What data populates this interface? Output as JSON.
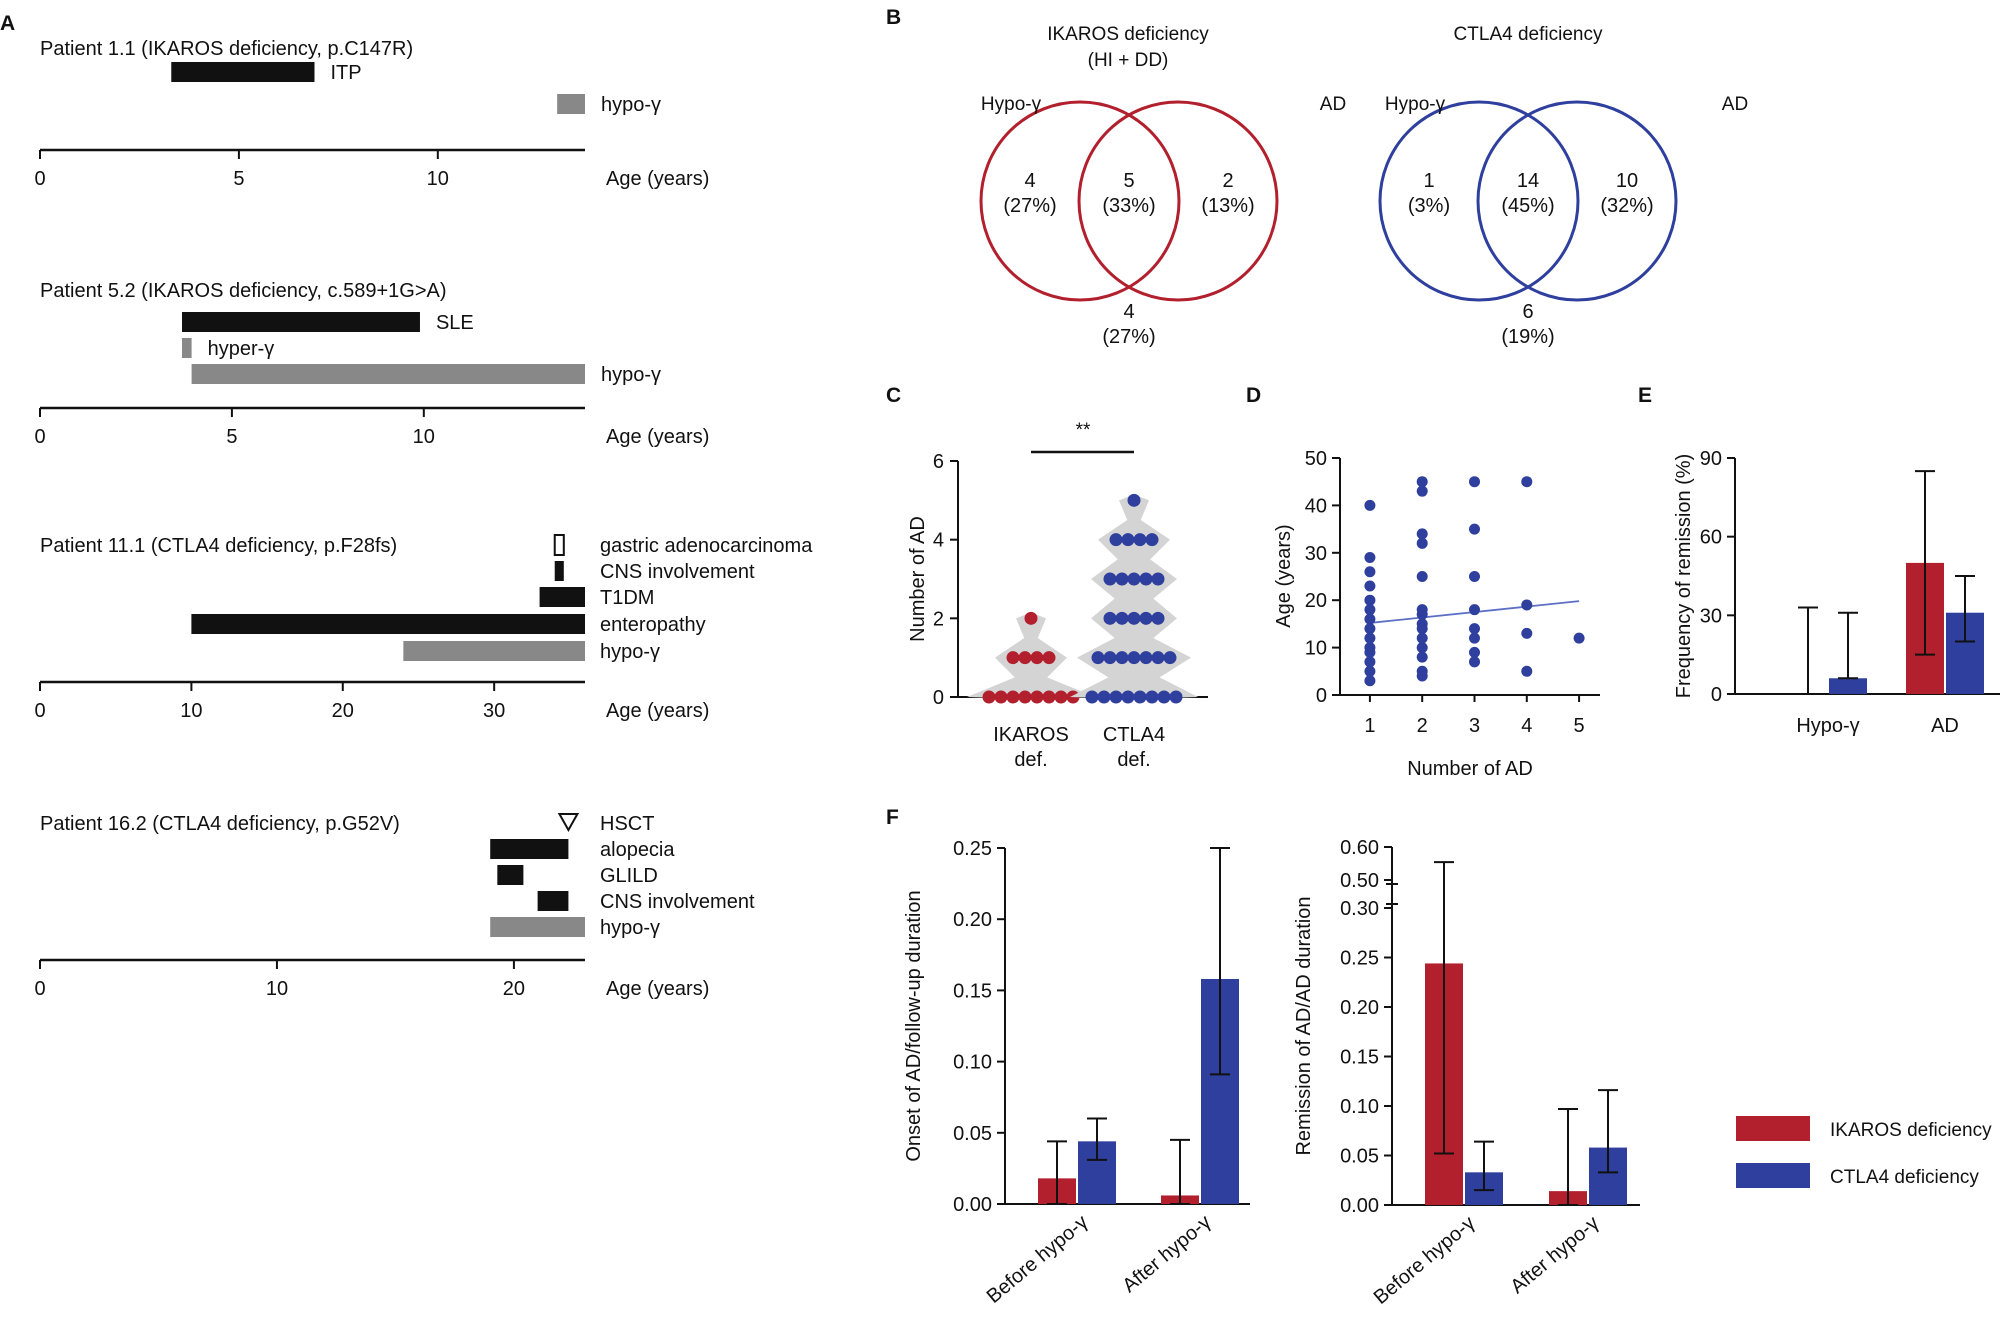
{
  "panel_labels": {
    "A": "A",
    "B": "B",
    "C": "C",
    "D": "D",
    "E": "E",
    "F": "F"
  },
  "colors": {
    "red": "#b21f2d",
    "blue": "#2e3f9e",
    "dark": "#111111",
    "gray": "#888888",
    "violin": "#d4d4d4"
  },
  "chart_data": [
    {
      "id": "A",
      "type": "timeline",
      "xlabel": "Age (years)",
      "patients": [
        {
          "title": "Patient 1.1 (IKAROS deficiency, p.C147R)",
          "xlim": [
            0,
            13.7
          ],
          "ticks": [
            0,
            5,
            10
          ],
          "bars": [
            {
              "label": "ITP",
              "start": 3.3,
              "end": 6.9,
              "kind": "black"
            },
            {
              "label": "hypo-γ",
              "start": 13.0,
              "end": 13.7,
              "kind": "gray"
            }
          ]
        },
        {
          "title": "Patient 5.2 (IKAROS deficiency, c.589+1G>A)",
          "xlim": [
            0,
            14.2
          ],
          "ticks": [
            0,
            5,
            10
          ],
          "bars": [
            {
              "label": "SLE",
              "start": 3.7,
              "end": 9.9,
              "kind": "black"
            },
            {
              "label": "hyper-γ",
              "start": 3.7,
              "end": 3.95,
              "kind": "gray"
            },
            {
              "label": "hypo-γ",
              "start": 3.95,
              "end": 14.2,
              "kind": "gray"
            }
          ]
        },
        {
          "title": "Patient 11.1 (CTLA4 deficiency, p.F28fs)",
          "xlim": [
            0,
            36
          ],
          "ticks": [
            0,
            10,
            20,
            30
          ],
          "bars": [
            {
              "label": "gastric adenocarcinoma",
              "start": 34.0,
              "end": 34.6,
              "kind": "open"
            },
            {
              "label": "CNS involvement",
              "start": 34.0,
              "end": 34.6,
              "kind": "black"
            },
            {
              "label": "T1DM",
              "start": 33.0,
              "end": 36.0,
              "kind": "black"
            },
            {
              "label": "enteropathy",
              "start": 10.0,
              "end": 36.0,
              "kind": "black"
            },
            {
              "label": "hypo-γ",
              "start": 24.0,
              "end": 36.0,
              "kind": "gray"
            }
          ]
        },
        {
          "title": "Patient 16.2 (CTLA4 deficiency, p.G52V)",
          "xlim": [
            0,
            23
          ],
          "ticks": [
            0,
            10,
            20
          ],
          "marker": {
            "label": "HSCT",
            "at": 22.3
          },
          "bars": [
            {
              "label": "alopecia",
              "start": 19.0,
              "end": 22.3,
              "kind": "black"
            },
            {
              "label": "GLILD",
              "start": 19.3,
              "end": 20.4,
              "kind": "black"
            },
            {
              "label": "CNS involvement",
              "start": 21.0,
              "end": 22.3,
              "kind": "black"
            },
            {
              "label": "hypo-γ",
              "start": 19.0,
              "end": 23.0,
              "kind": "gray"
            }
          ]
        }
      ]
    },
    {
      "id": "B",
      "type": "venn",
      "diagrams": [
        {
          "title": "IKAROS deficiency",
          "subtitle": "(HI + DD)",
          "color": "red",
          "left_label": "Hypo-γ",
          "right_label": "AD",
          "left_n": "4",
          "left_pct": "(27%)",
          "both_n": "5",
          "both_pct": "(33%)",
          "right_n": "2",
          "right_pct": "(13%)",
          "out_n": "4",
          "out_pct": "(27%)"
        },
        {
          "title": "CTLA4 deficiency",
          "subtitle": "",
          "color": "blue",
          "left_label": "Hypo-γ",
          "right_label": "AD",
          "left_n": "1",
          "left_pct": "(3%)",
          "both_n": "14",
          "both_pct": "(45%)",
          "right_n": "10",
          "right_pct": "(32%)",
          "out_n": "6",
          "out_pct": "(19%)"
        }
      ]
    },
    {
      "id": "C",
      "type": "violin-dots",
      "ylabel": "Number of AD",
      "ylim": [
        0,
        6
      ],
      "yticks": [
        0,
        2,
        4,
        6
      ],
      "significance": "**",
      "groups": [
        {
          "label1": "IKAROS",
          "label2": "def.",
          "color": "red",
          "counts": [
            {
              "value": 0,
              "n": 8
            },
            {
              "value": 1,
              "n": 4
            },
            {
              "value": 2,
              "n": 1
            }
          ]
        },
        {
          "label1": "CTLA4",
          "label2": "def.",
          "color": "blue",
          "counts": [
            {
              "value": 0,
              "n": 8
            },
            {
              "value": 1,
              "n": 7
            },
            {
              "value": 2,
              "n": 5
            },
            {
              "value": 3,
              "n": 5
            },
            {
              "value": 4,
              "n": 4
            },
            {
              "value": 5,
              "n": 1
            }
          ]
        }
      ]
    },
    {
      "id": "D",
      "type": "scatter",
      "xlabel": "Number of AD",
      "ylabel": "Age (years)",
      "xlim": [
        0.6,
        5.4
      ],
      "ylim": [
        0,
        50
      ],
      "xticks": [
        1,
        2,
        3,
        4,
        5
      ],
      "yticks": [
        0,
        10,
        20,
        30,
        40,
        50
      ],
      "trend": {
        "x": [
          1,
          5
        ],
        "y": [
          15.2,
          19.8
        ]
      },
      "points": [
        [
          1,
          3
        ],
        [
          1,
          5
        ],
        [
          1,
          7
        ],
        [
          1,
          9
        ],
        [
          1,
          10
        ],
        [
          1,
          12
        ],
        [
          1,
          14
        ],
        [
          1,
          16
        ],
        [
          1,
          18
        ],
        [
          1,
          20
        ],
        [
          1,
          23
        ],
        [
          1,
          26
        ],
        [
          1,
          29
        ],
        [
          1,
          40
        ],
        [
          2,
          4
        ],
        [
          2,
          5
        ],
        [
          2,
          8
        ],
        [
          2,
          10
        ],
        [
          2,
          12
        ],
        [
          2,
          14
        ],
        [
          2,
          15
        ],
        [
          2,
          17
        ],
        [
          2,
          18
        ],
        [
          2,
          25
        ],
        [
          2,
          32
        ],
        [
          2,
          34
        ],
        [
          2,
          43
        ],
        [
          2,
          45
        ],
        [
          3,
          7
        ],
        [
          3,
          9
        ],
        [
          3,
          12
        ],
        [
          3,
          14
        ],
        [
          3,
          18
        ],
        [
          3,
          25
        ],
        [
          3,
          35
        ],
        [
          3,
          45
        ],
        [
          4,
          5
        ],
        [
          4,
          13
        ],
        [
          4,
          19
        ],
        [
          4,
          45
        ],
        [
          5,
          12
        ]
      ]
    },
    {
      "id": "E",
      "type": "bar",
      "ylabel": "Frequency of remission (%)",
      "ylim": [
        0,
        90
      ],
      "yticks": [
        0,
        30,
        60,
        90
      ],
      "categories": [
        "Hypo-γ",
        "AD"
      ],
      "series": [
        {
          "name": "IKAROS deficiency",
          "color": "red",
          "values": [
            0,
            50
          ],
          "err_low": [
            0,
            35
          ],
          "err_high": [
            33,
            35
          ]
        },
        {
          "name": "CTLA4 deficiency",
          "color": "blue",
          "values": [
            6,
            31
          ],
          "err_low": [
            0,
            11
          ],
          "err_high": [
            25,
            14
          ]
        }
      ]
    },
    {
      "id": "F1",
      "type": "bar",
      "ylabel": "Onset of AD/follow-up duration",
      "ylim": [
        0,
        0.25
      ],
      "yticks": [
        0.0,
        0.05,
        0.1,
        0.15,
        0.2,
        0.25
      ],
      "ytick_labels": [
        "0.00",
        "0.05",
        "0.10",
        "0.15",
        "0.20",
        "0.25"
      ],
      "categories": [
        "Before hypo-γ",
        "After hypo-γ"
      ],
      "series": [
        {
          "name": "IKAROS deficiency",
          "color": "red",
          "values": [
            0.018,
            0.006
          ],
          "err_low": [
            0.018,
            0.006
          ],
          "err_high": [
            0.026,
            0.039
          ]
        },
        {
          "name": "CTLA4 deficiency",
          "color": "blue",
          "values": [
            0.044,
            0.158
          ],
          "err_low": [
            0.013,
            0.067
          ],
          "err_high": [
            0.016,
            0.092
          ]
        }
      ]
    },
    {
      "id": "F2",
      "type": "bar",
      "ylabel": "Remission of AD/AD duration",
      "ylim": [
        0,
        0.6
      ],
      "axis_break": [
        0.3,
        0.5
      ],
      "yticks": [
        0.0,
        0.05,
        0.1,
        0.15,
        0.2,
        0.25,
        0.3,
        0.5,
        0.6
      ],
      "ytick_labels": [
        "0.00",
        "0.05",
        "0.10",
        "0.15",
        "0.20",
        "0.25",
        "0.30",
        "0.50",
        "0.60"
      ],
      "categories": [
        "Before hypo-γ",
        "After hypo-γ"
      ],
      "series": [
        {
          "name": "IKAROS deficiency",
          "color": "red",
          "values": [
            0.244,
            0.014
          ],
          "err_low": [
            0.192,
            0.014
          ],
          "err_high": [
            0.31,
            0.083
          ]
        },
        {
          "name": "CTLA4 deficiency",
          "color": "blue",
          "values": [
            0.033,
            0.058
          ],
          "err_low": [
            0.018,
            0.025
          ],
          "err_high": [
            0.031,
            0.058
          ]
        }
      ]
    }
  ],
  "legend": {
    "items": [
      {
        "label": "IKAROS deficiency",
        "color": "red"
      },
      {
        "label": "CTLA4 deficiency",
        "color": "blue"
      }
    ]
  }
}
